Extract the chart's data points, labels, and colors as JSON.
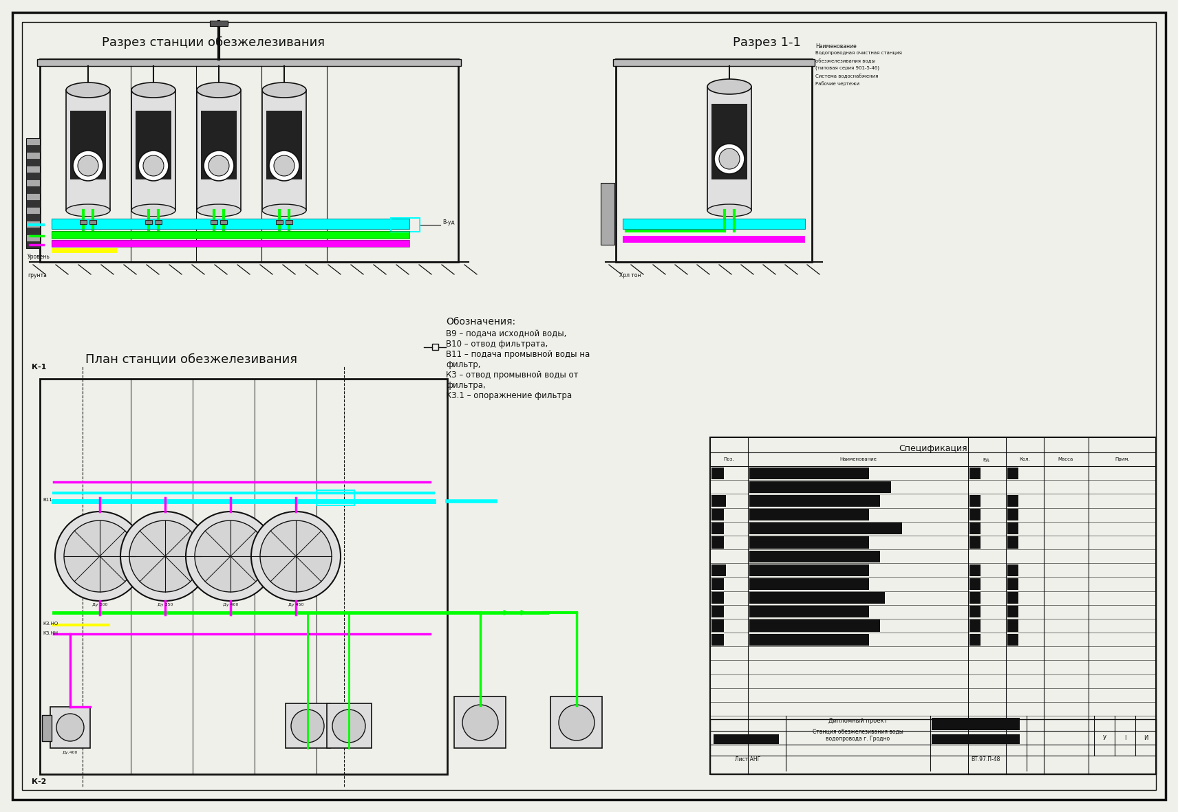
{
  "bg_color": "#f0f0eb",
  "line_color": "#111111",
  "cyan_color": "#00ffff",
  "green_color": "#00ff00",
  "magenta_color": "#ff00ff",
  "yellow_color": "#ffff00",
  "title1": "Разрез станции обезжелезивания",
  "title2": "Разрез 1-1",
  "title3": "План станции обезжелезивания",
  "legend_title": "Обозначения:",
  "legend_lines": [
    "В9 – подача исходной воды,",
    "В10 – отвод фильтрата,",
    "В11 – подача промывной воды на",
    "фильтр,",
    "К3 – отвод промывной воды от",
    "фильтра,",
    "К3.1 – опоражнение фильтра"
  ],
  "spec_title": "Спецификация"
}
